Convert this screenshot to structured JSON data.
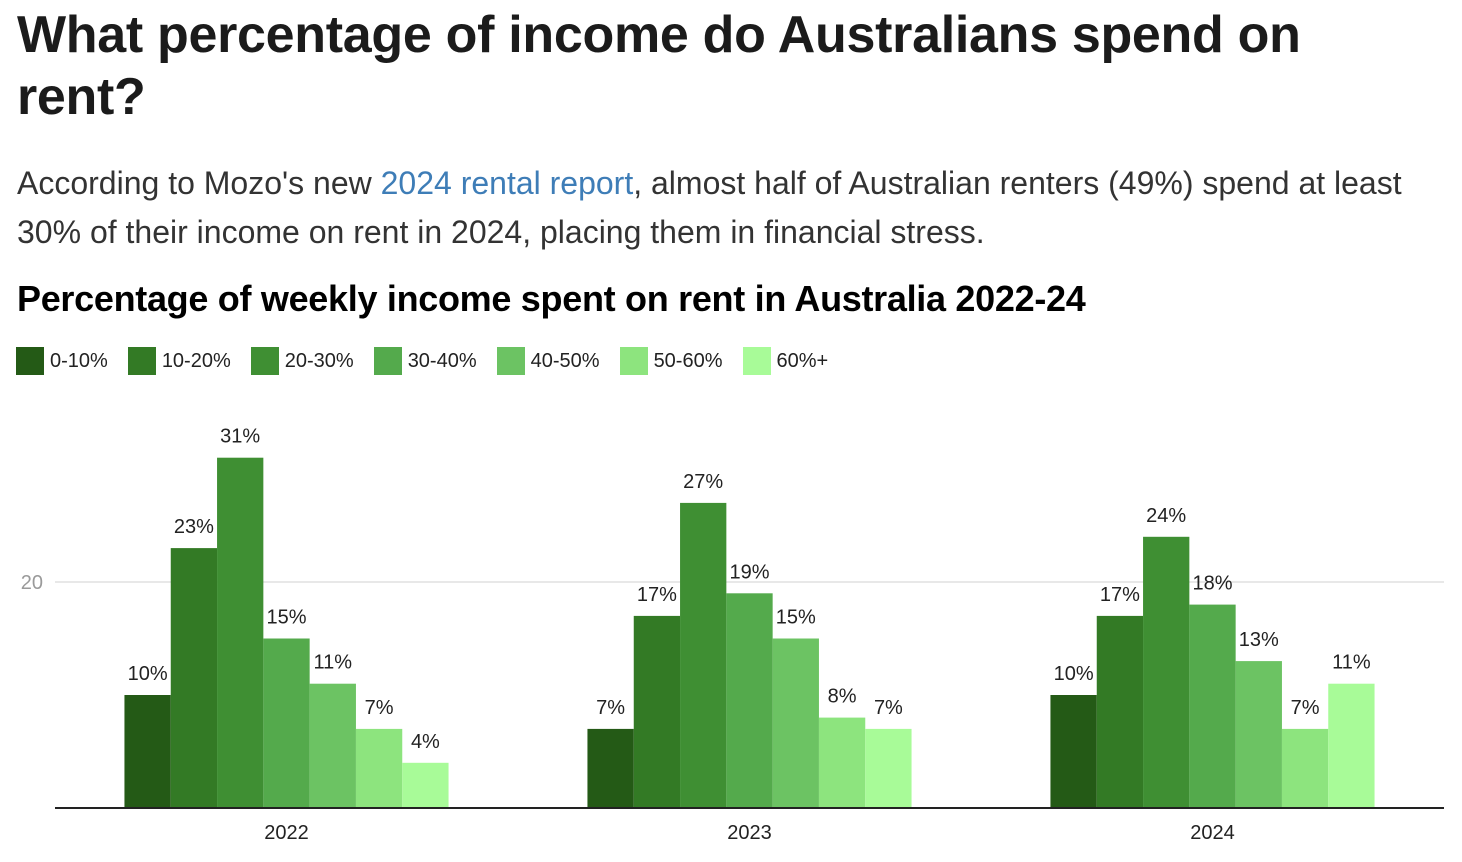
{
  "article": {
    "heading": "What percentage of income do Australians spend on rent?",
    "intro_before": "According to Mozo's new ",
    "intro_link": "2024 rental report",
    "intro_after": ", almost half of Australian renters (49%) spend at least 30% of their income on rent in 2024, placing them in financial stress."
  },
  "colors": {
    "series": [
      "#245a16",
      "#337a25",
      "#3f8f33",
      "#54aa4c",
      "#6cc363",
      "#8de47e",
      "#a8fb98"
    ],
    "link": "#3e7db7",
    "gridline": "#e0e0e0",
    "baseline": "#222222"
  },
  "chart_data": {
    "type": "bar",
    "title": "Percentage of weekly income spent on rent in Australia 2022-24",
    "xlabel": "",
    "ylabel": "",
    "categories": [
      "2022",
      "2023",
      "2024"
    ],
    "series": [
      {
        "name": "0-10%",
        "values": [
          10,
          7,
          10
        ],
        "labels": [
          "10%",
          "7%",
          "10%"
        ]
      },
      {
        "name": "10-20%",
        "values": [
          23,
          17,
          17
        ],
        "labels": [
          "23%",
          "17%",
          "17%"
        ]
      },
      {
        "name": "20-30%",
        "values": [
          31,
          27,
          24
        ],
        "labels": [
          "31%",
          "27%",
          "24%"
        ]
      },
      {
        "name": "30-40%",
        "values": [
          15,
          19,
          18
        ],
        "labels": [
          "15%",
          "19%",
          "18%"
        ]
      },
      {
        "name": "40-50%",
        "values": [
          11,
          15,
          13
        ],
        "labels": [
          "11%",
          "15%",
          "13%"
        ]
      },
      {
        "name": "50-60%",
        "values": [
          7,
          8,
          7
        ],
        "labels": [
          "7%",
          "8%",
          "7%"
        ]
      },
      {
        "name": "60%+",
        "values": [
          4,
          7,
          11
        ],
        "labels": [
          "4%",
          "7%",
          "11%"
        ]
      }
    ],
    "yticks": [
      20
    ],
    "ylim": [
      0,
      34
    ],
    "grid": true,
    "legend": "top-left"
  }
}
